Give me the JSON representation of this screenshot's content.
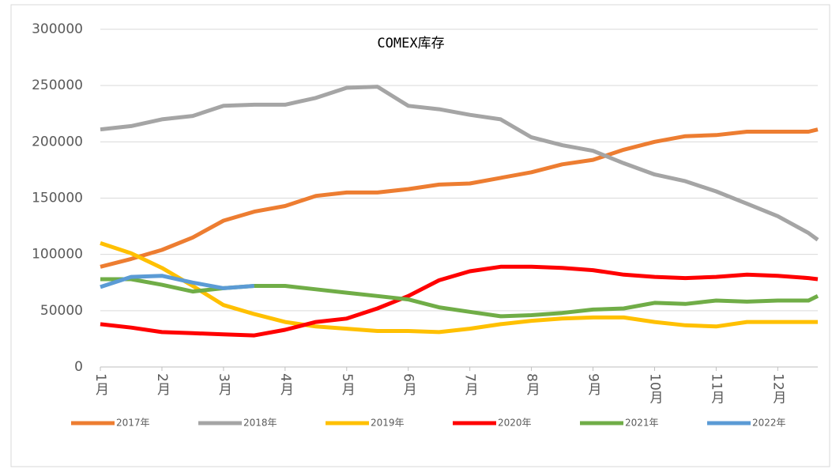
{
  "chart_data": {
    "type": "line",
    "title": "COMEX库存",
    "x": [
      1,
      1.5,
      2,
      2.5,
      3,
      3.5,
      4,
      4.5,
      5,
      5.5,
      6,
      6.5,
      7,
      7.5,
      8,
      8.5,
      9,
      9.5,
      10,
      10.5,
      11,
      11.5,
      12,
      12.5,
      12.65
    ],
    "xlim": [
      1,
      12.65
    ],
    "xticks": [
      {
        "value": 1,
        "label": "1月"
      },
      {
        "value": 2,
        "label": "2月"
      },
      {
        "value": 3,
        "label": "3月"
      },
      {
        "value": 4,
        "label": "4月"
      },
      {
        "value": 5,
        "label": "5月"
      },
      {
        "value": 6,
        "label": "6月"
      },
      {
        "value": 7,
        "label": "7月"
      },
      {
        "value": 8,
        "label": "8月"
      },
      {
        "value": 9,
        "label": "9月"
      },
      {
        "value": 10,
        "label": "10月"
      },
      {
        "value": 11,
        "label": "11月"
      },
      {
        "value": 12,
        "label": "12月"
      }
    ],
    "ylim": [
      0,
      300000
    ],
    "yticks": [
      0,
      50000,
      100000,
      150000,
      200000,
      250000,
      300000
    ],
    "grid": true,
    "legend": "bottom",
    "series": [
      {
        "name": "2017年",
        "color": "#ed7d31",
        "values": [
          89000,
          96000,
          104000,
          115000,
          130000,
          138000,
          143000,
          152000,
          155000,
          155000,
          158000,
          162000,
          163000,
          168000,
          173000,
          180000,
          184000,
          193000,
          200000,
          205000,
          206000,
          209000,
          209000,
          209000,
          211000
        ]
      },
      {
        "name": "2018年",
        "color": "#a5a5a5",
        "values": [
          211000,
          214000,
          220000,
          223000,
          232000,
          233000,
          233000,
          239000,
          248000,
          249000,
          232000,
          229000,
          224000,
          220000,
          204000,
          197000,
          192000,
          181000,
          171000,
          165000,
          156000,
          145000,
          134000,
          119000,
          113000
        ]
      },
      {
        "name": "2019年",
        "color": "#ffc000",
        "values": [
          110000,
          101000,
          88000,
          72000,
          55000,
          47000,
          40000,
          36000,
          34000,
          32000,
          32000,
          31000,
          34000,
          38000,
          41000,
          43000,
          44000,
          44000,
          40000,
          37000,
          36000,
          40000,
          40000,
          40000,
          40000
        ]
      },
      {
        "name": "2020年",
        "color": "#ff0000",
        "values": [
          38000,
          35000,
          31000,
          30000,
          29000,
          28000,
          33000,
          40000,
          43000,
          52000,
          63000,
          77000,
          85000,
          89000,
          89000,
          88000,
          86000,
          82000,
          80000,
          79000,
          80000,
          82000,
          81000,
          79000,
          78000
        ]
      },
      {
        "name": "2021年",
        "color": "#70ad47",
        "values": [
          78000,
          78000,
          73000,
          67000,
          70000,
          72000,
          72000,
          69000,
          66000,
          63000,
          60000,
          53000,
          49000,
          45000,
          46000,
          48000,
          51000,
          52000,
          57000,
          56000,
          59000,
          58000,
          59000,
          59000,
          63000
        ]
      },
      {
        "name": "2022年",
        "color": "#5b9bd5",
        "values": [
          71000,
          80000,
          81000,
          75000,
          70000,
          72000,
          null,
          null,
          null,
          null,
          null,
          null,
          null,
          null,
          null,
          null,
          null,
          null,
          null,
          null,
          null,
          null,
          null,
          null,
          null
        ]
      }
    ]
  }
}
